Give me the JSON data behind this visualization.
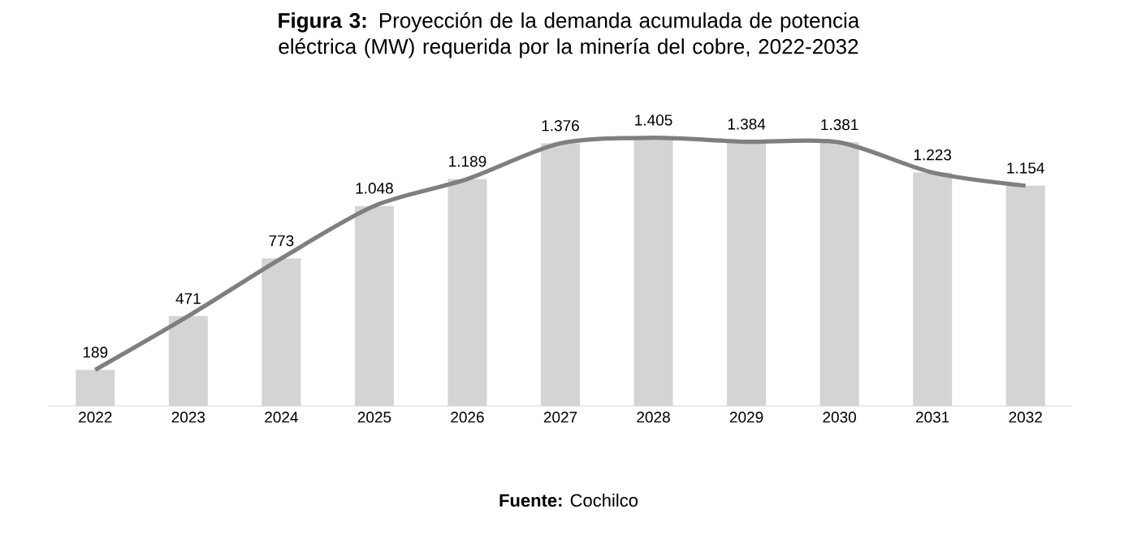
{
  "chart_data": {
    "type": "bar",
    "title": "**Figura 3:** Proyección de la demanda acumulada de potencia eléctrica (MW) requerida por la minería del cobre, 2022-2032",
    "categories": [
      "2022",
      "2023",
      "2024",
      "2025",
      "2026",
      "2027",
      "2028",
      "2029",
      "2030",
      "2031",
      "2032"
    ],
    "series": [
      {
        "color": "#d4d4d4",
        "values": [
          189,
          471,
          773,
          1048,
          1189,
          1376,
          1405,
          1384,
          1381,
          1223,
          1154
        ],
        "value_labels": [
          "189",
          "471",
          "773",
          "1.048",
          "1.189",
          "1.376",
          "1.405",
          "1.384",
          "1.381",
          "1.223",
          "1.154"
        ]
      },
      {
        "type": "line",
        "marker": "none",
        "color": "#7f7f7f",
        "values": [
          189,
          471,
          773,
          1048,
          1189,
          1376,
          1405,
          1384,
          1381,
          1223,
          1154
        ]
      }
    ],
    "annotations": [
      "**Fuente:** Cochilco"
    ]
  }
}
